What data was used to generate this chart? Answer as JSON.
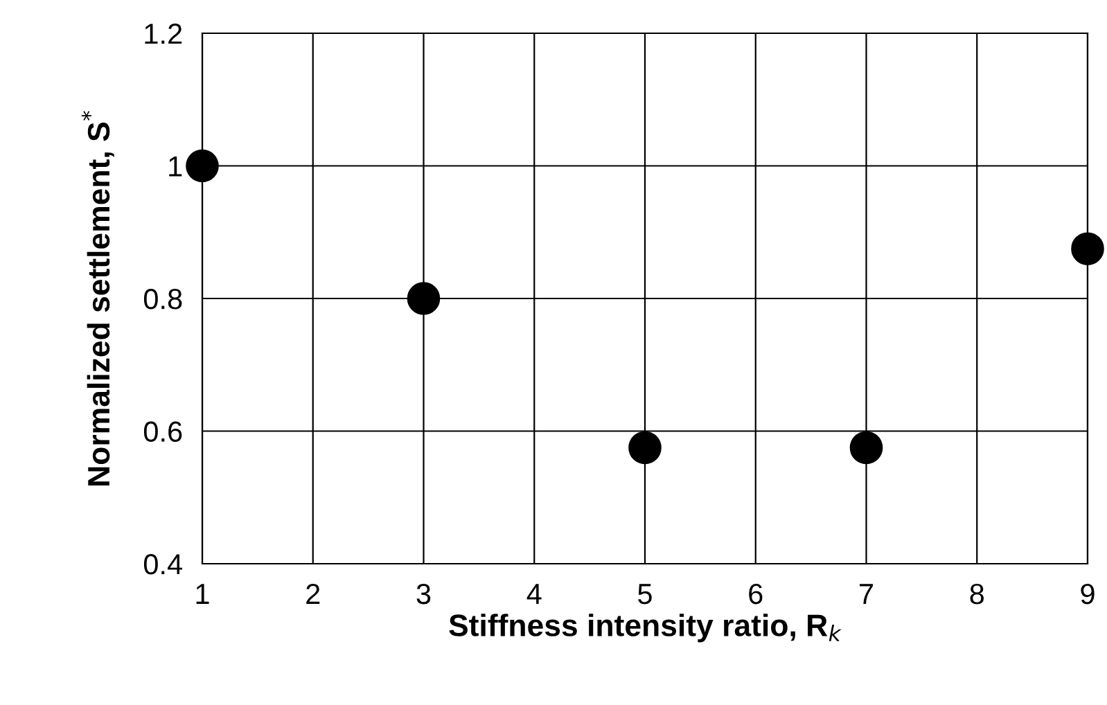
{
  "chart_data": {
    "type": "scatter",
    "xlabel": "Stiffness intensity ratio, R$_{k}$",
    "ylabel": "Normalized settlement, S$^{*}$",
    "x": [
      1,
      3,
      5,
      7,
      9
    ],
    "series": [
      {
        "color": "#000000",
        "values": [
          1.0,
          0.8,
          0.575,
          0.575,
          0.875
        ]
      }
    ],
    "xlim": [
      1,
      9
    ],
    "xticks": [
      1,
      2,
      3,
      4,
      5,
      6,
      7,
      8,
      9
    ],
    "ylim": [
      0.4,
      1.2
    ],
    "yticks": [
      0.4,
      0.6,
      0.8,
      1,
      1.2
    ],
    "grid": true,
    "marker": "circle"
  }
}
